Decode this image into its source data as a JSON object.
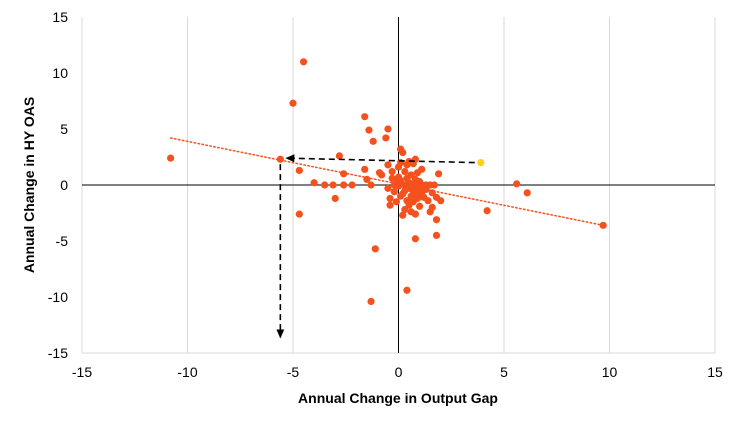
{
  "chart_data": {
    "type": "scatter",
    "xlabel": "Annual Change in Output Gap",
    "ylabel": "Annual Change in HY OAS",
    "xlim": [
      -15,
      15
    ],
    "ylim": [
      -15,
      15
    ],
    "x_ticks": [
      -15,
      -10,
      -5,
      0,
      5,
      10,
      15
    ],
    "y_ticks": [
      15,
      10,
      5,
      0,
      -5,
      -10,
      -15
    ],
    "grid": "vertical gridlines",
    "colors": {
      "points": "#f4511e",
      "highlight": "#ffd11a",
      "trendline": "#f4511e",
      "gridline": "#d9d9d9",
      "axis": "#000000",
      "arrows": "#000000"
    },
    "series": [
      {
        "points": [
          [
            -10.8,
            2.4
          ],
          [
            -5.6,
            2.3
          ],
          [
            -5.0,
            7.3
          ],
          [
            -4.5,
            11.0
          ],
          [
            -4.7,
            1.3
          ],
          [
            -4.7,
            -2.6
          ],
          [
            -4.0,
            0.2
          ],
          [
            -3.5,
            0.0
          ],
          [
            -3.1,
            0.0
          ],
          [
            -3.0,
            -1.2
          ],
          [
            -2.8,
            2.6
          ],
          [
            -2.6,
            1.0
          ],
          [
            -2.6,
            0.0
          ],
          [
            -2.2,
            0.0
          ],
          [
            -1.6,
            6.1
          ],
          [
            -1.6,
            1.4
          ],
          [
            -1.5,
            0.5
          ],
          [
            -1.4,
            4.9
          ],
          [
            -1.3,
            0.0
          ],
          [
            -1.2,
            3.9
          ],
          [
            -1.1,
            -5.7
          ],
          [
            -1.3,
            -10.4
          ],
          [
            -0.9,
            1.1
          ],
          [
            -0.8,
            0.9
          ],
          [
            -0.6,
            4.2
          ],
          [
            -0.5,
            5.0
          ],
          [
            -0.5,
            1.8
          ],
          [
            -0.5,
            -0.3
          ],
          [
            -0.4,
            -1.2
          ],
          [
            -0.4,
            -1.8
          ],
          [
            -0.3,
            0.6
          ],
          [
            -0.3,
            1.2
          ],
          [
            -0.2,
            0.0
          ],
          [
            -0.2,
            -0.6
          ],
          [
            -0.1,
            0.3
          ],
          [
            -0.1,
            -1.5
          ],
          [
            0.0,
            1.6
          ],
          [
            0.0,
            0.7
          ],
          [
            0.0,
            -0.1
          ],
          [
            0.1,
            3.2
          ],
          [
            0.1,
            2.0
          ],
          [
            0.1,
            0.4
          ],
          [
            0.1,
            -1.0
          ],
          [
            0.2,
            2.9
          ],
          [
            0.2,
            -0.8
          ],
          [
            0.2,
            -2.7
          ],
          [
            0.3,
            1.2
          ],
          [
            0.3,
            0.0
          ],
          [
            0.3,
            -0.5
          ],
          [
            0.3,
            -2.2
          ],
          [
            0.4,
            1.8
          ],
          [
            0.4,
            0.6
          ],
          [
            0.4,
            -1.4
          ],
          [
            0.4,
            -9.4
          ],
          [
            0.5,
            2.1
          ],
          [
            0.5,
            0.2
          ],
          [
            0.5,
            -0.3
          ],
          [
            0.5,
            -1.8
          ],
          [
            0.6,
            0.9
          ],
          [
            0.6,
            -0.2
          ],
          [
            0.6,
            -1.0
          ],
          [
            0.6,
            -2.4
          ],
          [
            0.7,
            1.9
          ],
          [
            0.7,
            0.0
          ],
          [
            0.7,
            -0.6
          ],
          [
            0.7,
            -1.5
          ],
          [
            0.8,
            2.3
          ],
          [
            0.8,
            0.5
          ],
          [
            0.8,
            -0.2
          ],
          [
            0.8,
            -0.9
          ],
          [
            0.8,
            -2.6
          ],
          [
            0.8,
            -4.8
          ],
          [
            0.9,
            1.1
          ],
          [
            0.9,
            0.0
          ],
          [
            0.9,
            -1.2
          ],
          [
            1.0,
            0.3
          ],
          [
            1.0,
            -0.5
          ],
          [
            1.0,
            -1.9
          ],
          [
            1.1,
            1.4
          ],
          [
            1.1,
            0.0
          ],
          [
            1.1,
            -0.8
          ],
          [
            1.2,
            -0.1
          ],
          [
            1.2,
            -1.1
          ],
          [
            1.3,
            0.0
          ],
          [
            1.3,
            -0.4
          ],
          [
            1.4,
            -1.4
          ],
          [
            1.5,
            0.0
          ],
          [
            1.5,
            -2.4
          ],
          [
            1.6,
            -0.7
          ],
          [
            1.6,
            -2.0
          ],
          [
            1.7,
            0.0
          ],
          [
            1.8,
            -1.1
          ],
          [
            1.8,
            -3.1
          ],
          [
            1.8,
            -4.5
          ],
          [
            1.9,
            1.0
          ],
          [
            2.0,
            -1.4
          ],
          [
            4.2,
            -2.3
          ],
          [
            5.6,
            0.1
          ],
          [
            6.1,
            -0.7
          ],
          [
            9.7,
            -3.6
          ]
        ]
      }
    ],
    "highlight_point": [
      3.9,
      2.0
    ],
    "trendline": {
      "x": [
        -10.8,
        9.7
      ],
      "y": [
        4.2,
        -3.6
      ]
    },
    "arrows": [
      {
        "from": [
          3.9,
          2.0
        ],
        "to": [
          -5.6,
          2.4
        ]
      },
      {
        "from": [
          -5.6,
          2.4
        ],
        "to": [
          -5.6,
          -13.6
        ]
      }
    ]
  }
}
